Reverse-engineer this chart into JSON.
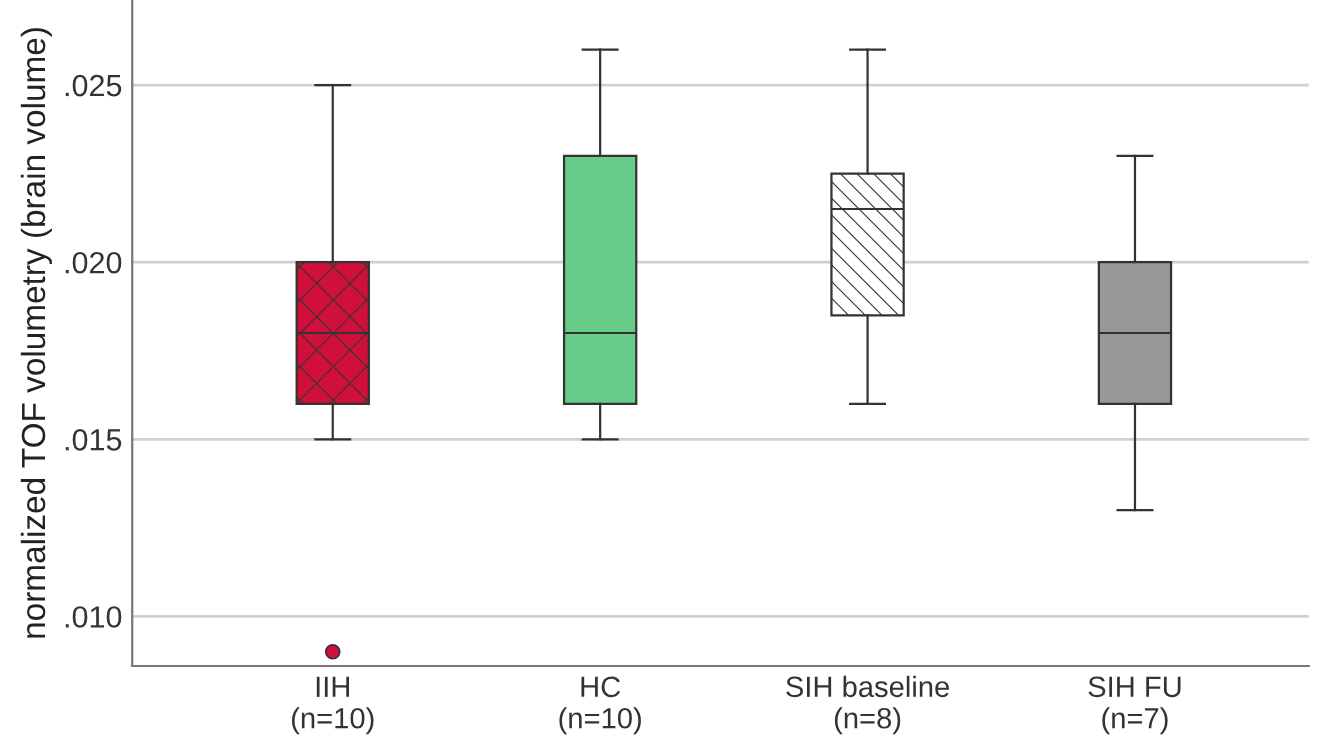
{
  "chart_data": {
    "type": "box",
    "ylabel": "normalized TOF volumetry (brain volume)",
    "categories": [
      "IIH\n(n=10)",
      "HC\n(n=10)",
      "SIH baseline\n(n=8)",
      "SIH FU\n(n=7)"
    ],
    "colors": [
      "#d0103a",
      "#66cc88",
      "#ffffff",
      "#989898"
    ],
    "boxes": [
      {
        "low": 0.015,
        "q1": 0.016,
        "median": 0.018,
        "q3": 0.02,
        "high": 0.025,
        "outliers": [
          0.009
        ]
      },
      {
        "low": 0.015,
        "q1": 0.016,
        "median": 0.018,
        "q3": 0.023,
        "high": 0.026
      },
      {
        "low": 0.016,
        "q1": 0.0185,
        "median": 0.0215,
        "q3": 0.0225,
        "high": 0.026
      },
      {
        "low": 0.013,
        "q1": 0.016,
        "median": 0.018,
        "q3": 0.02,
        "high": 0.023
      }
    ],
    "ylim": [
      0.0086,
      0.0274
    ],
    "yticks": [
      {
        "value": 0.01,
        "label": ".010"
      },
      {
        "value": 0.015,
        "label": ".015"
      },
      {
        "value": 0.02,
        "label": ".020"
      },
      {
        "value": 0.025,
        "label": ".025"
      }
    ],
    "grid": "y",
    "legend": false
  }
}
